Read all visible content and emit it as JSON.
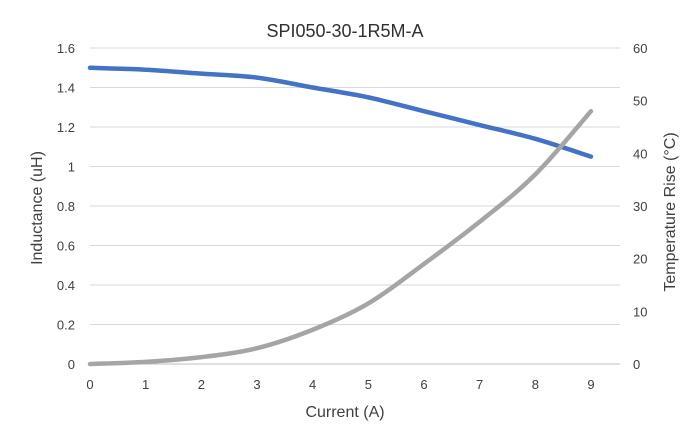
{
  "chart_data": {
    "type": "line",
    "title": "SPI050-30-1R5M-A",
    "xlabel": "Current (A)",
    "ylabel": "Inductance (uH)",
    "y2label": "Temperature Rise (°C)",
    "xlim": [
      0,
      9
    ],
    "ylim": [
      0,
      1.6
    ],
    "y2lim": [
      0,
      60
    ],
    "x_ticks": [
      "0",
      "1",
      "2",
      "3",
      "4",
      "5",
      "6",
      "7",
      "8",
      "9"
    ],
    "y_ticks": [
      "0",
      "0.2",
      "0.4",
      "0.6",
      "0.8",
      "1",
      "1.2",
      "1.4",
      "1.6"
    ],
    "y2_ticks": [
      "0",
      "10",
      "20",
      "30",
      "40",
      "50",
      "60"
    ],
    "grid": true,
    "legend": "none",
    "series": [
      {
        "axis": "left",
        "color": "#4472C4",
        "x": [
          0,
          1,
          2,
          3,
          4,
          5,
          6,
          7,
          8,
          9
        ],
        "values": [
          1.5,
          1.49,
          1.47,
          1.45,
          1.4,
          1.35,
          1.28,
          1.21,
          1.14,
          1.05
        ]
      },
      {
        "axis": "right",
        "color": "#A5A5A5",
        "x": [
          0,
          1,
          2,
          3,
          4,
          5,
          6,
          7,
          8,
          9
        ],
        "values": [
          0,
          0.4,
          1.3,
          3,
          6.5,
          11.5,
          19,
          27,
          36,
          48
        ]
      }
    ]
  }
}
